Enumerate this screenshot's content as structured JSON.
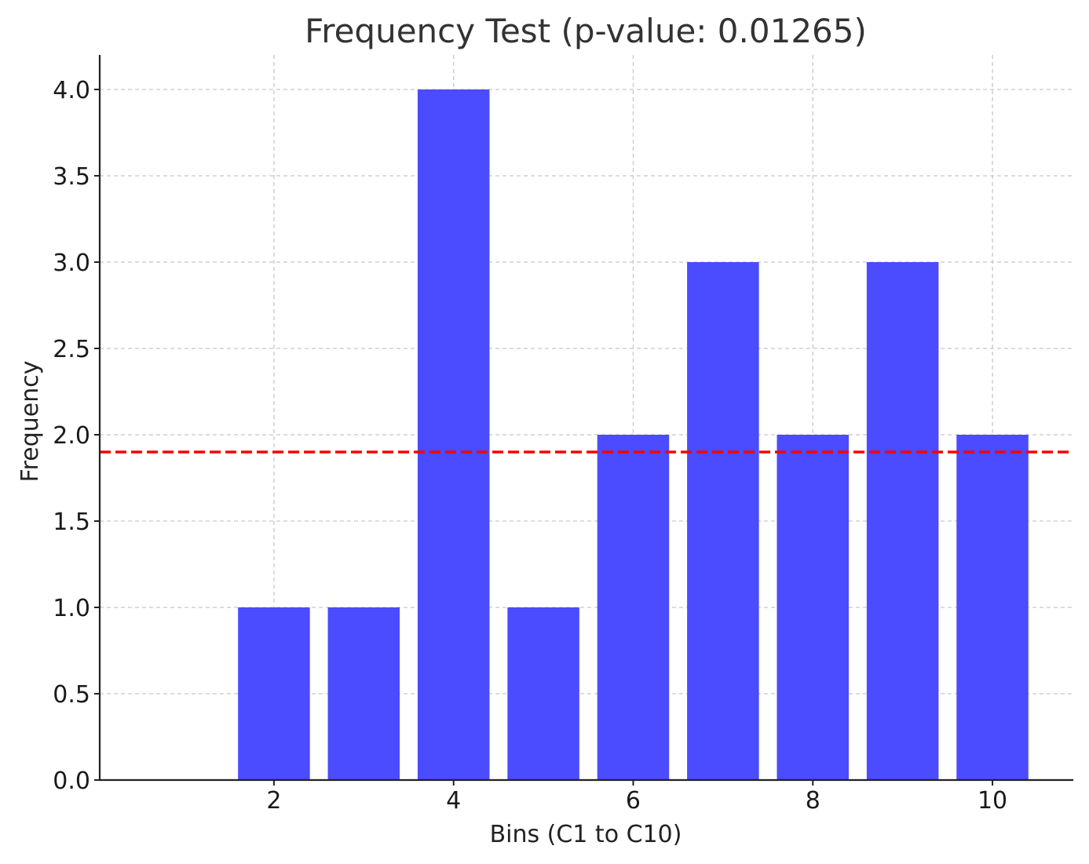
{
  "chart_data": {
    "type": "bar",
    "title": "Frequency Test (p-value: 0.01265)",
    "xlabel": "Bins (C1 to C10)",
    "ylabel": "Frequency",
    "x": [
      1,
      2,
      3,
      4,
      5,
      6,
      7,
      8,
      9,
      10
    ],
    "values": [
      0,
      1,
      1,
      4,
      1,
      2,
      3,
      2,
      3,
      2
    ],
    "xlim": [
      0.06,
      10.9
    ],
    "ylim": [
      0,
      4.2
    ],
    "xticks": [
      2,
      4,
      6,
      8,
      10
    ],
    "xtick_labels": [
      "2",
      "4",
      "6",
      "8",
      "10"
    ],
    "yticks": [
      0,
      0.5,
      1,
      1.5,
      2,
      2.5,
      3,
      3.5,
      4
    ],
    "ytick_labels": [
      "0.0",
      "0.5",
      "1.0",
      "1.5",
      "2.0",
      "2.5",
      "3.0",
      "3.5",
      "4.0"
    ],
    "reference_line": {
      "y": 1.9,
      "style": "dashed",
      "color": "#ff0000"
    },
    "bar_color": "#4b4bff",
    "grid": true,
    "grid_style": "dashed"
  }
}
